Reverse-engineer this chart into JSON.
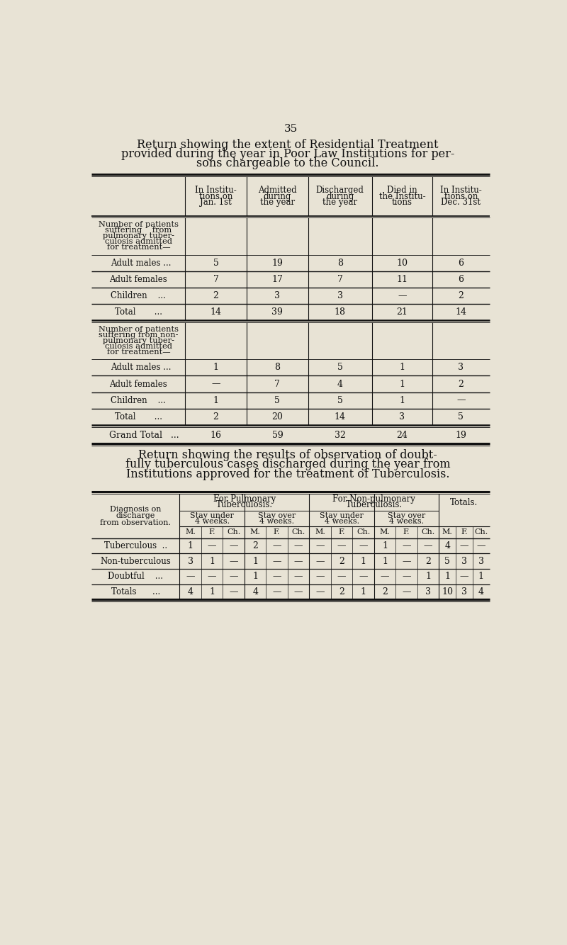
{
  "bg_color": "#e8e3d5",
  "page_number": "35",
  "title1_lines": [
    "Return showing the extent of Residential Treatment",
    "provided during the year in Poor Law Institutions for per-",
    "sons chargeable to the Council."
  ],
  "table1_col_headers": [
    "In Institu-\ntions on\nJan. 1st",
    "Admitted\nduring\nthe year",
    "Discharged\nduring\nthe year",
    "Died in\nthe Institu-\ntions",
    "In Institu-\ntions on\nDec. 31st"
  ],
  "table1_section1_header_lines": [
    "Number of patients",
    "suffering    from",
    "pulmonary tuber-",
    "culosis admitted",
    "for treatment—"
  ],
  "table1_section1_rows": [
    [
      "Adult males ...",
      "5",
      "19",
      "8",
      "10",
      "6"
    ],
    [
      "Adult females",
      "7",
      "17",
      "7",
      "11",
      "6"
    ],
    [
      "Children    ...",
      "2",
      "3",
      "3",
      "—",
      "2"
    ],
    [
      "Total       ...",
      "14",
      "39",
      "18",
      "21",
      "14"
    ]
  ],
  "table1_section2_header_lines": [
    "Number of patients",
    "suffering from non-",
    "pulmonary tuber-",
    "culosis admitted",
    "for treatment—"
  ],
  "table1_section2_rows": [
    [
      "Adult males ...",
      "1",
      "8",
      "5",
      "1",
      "3"
    ],
    [
      "Adult females",
      "—",
      "7",
      "4",
      "1",
      "2"
    ],
    [
      "Children    ...",
      "1",
      "5",
      "5",
      "1",
      "—"
    ],
    [
      "Total       ...",
      "2",
      "20",
      "14",
      "3",
      "5"
    ]
  ],
  "table1_grand_total_row": [
    "Grand Total   ...",
    "16",
    "59",
    "32",
    "24",
    "19"
  ],
  "title2_lines": [
    "Return showing the results of observation of doubt-",
    "fully tuberculous cases discharged during the year from",
    "Institutions approved for the treatment of Tuberculosis."
  ],
  "table2_row_labels": [
    "Tuberculous  ..",
    "Non-tuberculous",
    "Doubtful    ...",
    "Totals      ..."
  ],
  "table2_data": [
    [
      "1",
      "—",
      "—",
      "2",
      "—",
      "—",
      "—",
      "—",
      "—",
      "1",
      "—",
      "—",
      "4",
      "—",
      "—"
    ],
    [
      "3",
      "1",
      "—",
      "1",
      "—",
      "—",
      "—",
      "2",
      "1",
      "1",
      "—",
      "2",
      "5",
      "3",
      "3"
    ],
    [
      "—",
      "—",
      "—",
      "1",
      "—",
      "—",
      "—",
      "—",
      "—",
      "—",
      "—",
      "1",
      "1",
      "—",
      "1"
    ],
    [
      "4",
      "1",
      "—",
      "4",
      "—",
      "—",
      "—",
      "2",
      "1",
      "2",
      "—",
      "3",
      "10",
      "3",
      "4"
    ]
  ]
}
